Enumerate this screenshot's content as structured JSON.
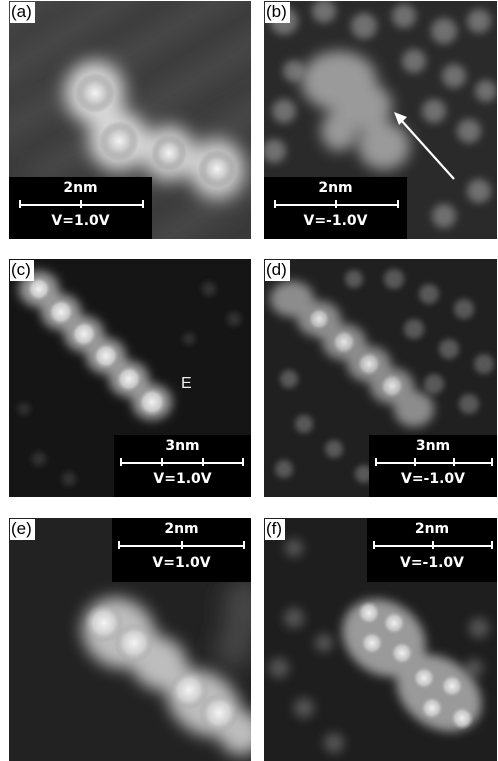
{
  "panels": [
    {
      "id": "a",
      "label": "(a)",
      "scale": "2nm",
      "voltage": "V=1.0V"
    },
    {
      "id": "b",
      "label": "(b)",
      "scale": "2nm",
      "voltage": "V=-1.0V"
    },
    {
      "id": "c",
      "label": "(c)",
      "scale": "3nm",
      "voltage": "V=1.0V",
      "marker": "E"
    },
    {
      "id": "d",
      "label": "(d)",
      "scale": "3nm",
      "voltage": "V=-1.0V"
    },
    {
      "id": "e",
      "label": "(e)",
      "scale": "2nm",
      "voltage": "V=1.0V"
    },
    {
      "id": "f",
      "label": "(f)",
      "scale": "2nm",
      "voltage": "V=-1.0V"
    }
  ]
}
